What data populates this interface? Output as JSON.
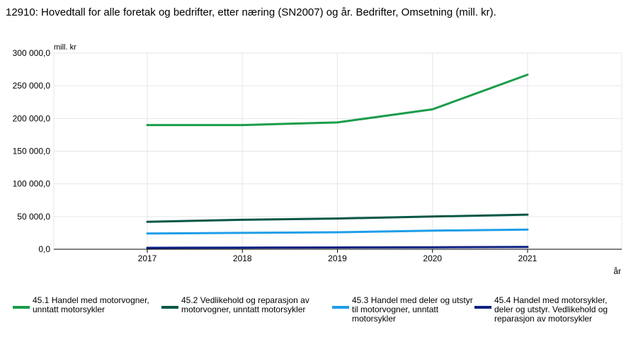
{
  "title": "12910: Hovedtall for alle foretak og bedrifter, etter næring (SN2007) og år. Bedrifter, Omsetning (mill. kr).",
  "colors": {
    "grid": "#e6e6e6",
    "axis": "#000000",
    "s1": "#1a9d49",
    "s2": "#075745",
    "s3": "#1f9ee8",
    "s4": "#0c2082"
  },
  "chart_data": {
    "type": "line",
    "ylabel": "mill. kr",
    "xlabel": "år",
    "ylim": [
      0,
      300000
    ],
    "yticks": [
      "0,0",
      "50 000,0",
      "100 000,0",
      "150 000,0",
      "200 000,0",
      "250 000,0",
      "300 000,0"
    ],
    "ytick_values": [
      0,
      50000,
      100000,
      150000,
      200000,
      250000,
      300000
    ],
    "x": [
      "2017",
      "2018",
      "2019",
      "2020",
      "2021"
    ],
    "grid": true,
    "legend": "bottom",
    "series": [
      {
        "name": "45.1 Handel med motorvogner, unntatt motorsykler",
        "color": "#1a9d49",
        "values": [
          190000,
          190000,
          194000,
          214000,
          267000
        ]
      },
      {
        "name": "45.2 Vedlikehold og reparasjon av motorvogner, unntatt motorsykler",
        "color": "#075745",
        "values": [
          42000,
          45000,
          47000,
          50000,
          53000
        ]
      },
      {
        "name": "45.3 Handel med deler og utstyr til motorvogner, unntatt motorsykler",
        "color": "#1f9ee8",
        "values": [
          24000,
          25000,
          26000,
          28500,
          30000
        ]
      },
      {
        "name": "45.4 Handel med motorsykler, deler og utstyr. Vedlikehold og reparasjon av motorsykler",
        "color": "#0c2082",
        "values": [
          2200,
          2500,
          2700,
          3000,
          3500
        ]
      }
    ]
  }
}
